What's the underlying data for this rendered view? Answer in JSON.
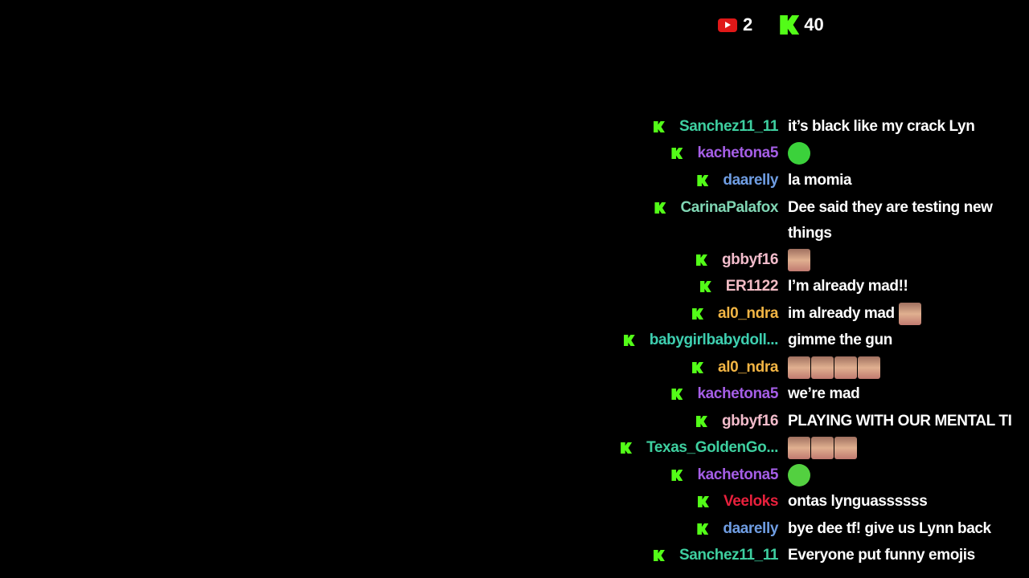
{
  "counters": {
    "youtube_icon": "youtube-icon",
    "youtube_count": "2",
    "kick_icon": "kick-icon",
    "kick_count": "40"
  },
  "colors": {
    "kick_green": "#53fc18",
    "youtube_red": "#e01818"
  },
  "chat": [
    {
      "user": "Sanchez11_11",
      "color": "#3ecfa0",
      "text": "it’s black like my crack Lyn"
    },
    {
      "user": "kachetona5",
      "color": "#a55ee6",
      "emotes": [
        "crying-emote"
      ]
    },
    {
      "user": "daarelly",
      "color": "#6f9de2",
      "text": "la momia"
    },
    {
      "user": "CarinaPalafox",
      "color": "#80d6b4",
      "text": "Dee said they are testing new things"
    },
    {
      "user": "gbbyf16",
      "color": "#f2bccb",
      "emotes": [
        "face-emote"
      ]
    },
    {
      "user": "ER1122",
      "color": "#f2bcc4",
      "text": "I’m already mad!!"
    },
    {
      "user": "al0_ndra",
      "color": "#f2b544",
      "text": "im already mad",
      "emotes": [
        "face-emote"
      ]
    },
    {
      "user": "babygirlbabydoll...",
      "color": "#3ecfb0",
      "text": "gimme the gun"
    },
    {
      "user": "al0_ndra",
      "color": "#f2b544",
      "emotes": [
        "face-emote",
        "face-emote",
        "face-emote",
        "face-emote"
      ]
    },
    {
      "user": "kachetona5",
      "color": "#a55ee6",
      "text": "we’re mad"
    },
    {
      "user": "gbbyf16",
      "color": "#f2bccb",
      "text": "PLAYING WITH OUR MENTAL TI"
    },
    {
      "user": "Texas_GoldenGo...",
      "color": "#3ecf9f",
      "emotes": [
        "face-emote",
        "face-emote",
        "face-emote"
      ]
    },
    {
      "user": "kachetona5",
      "color": "#a55ee6",
      "emotes": [
        "green-emote"
      ]
    },
    {
      "user": "Veeloks",
      "color": "#e8203c",
      "text": "ontas lynguassssss"
    },
    {
      "user": "daarelly",
      "color": "#6f9de2",
      "text": "bye dee tf! give us Lynn back"
    },
    {
      "user": "Sanchez11_11",
      "color": "#3ecfa0",
      "text": "Everyone put funny emojis"
    }
  ]
}
